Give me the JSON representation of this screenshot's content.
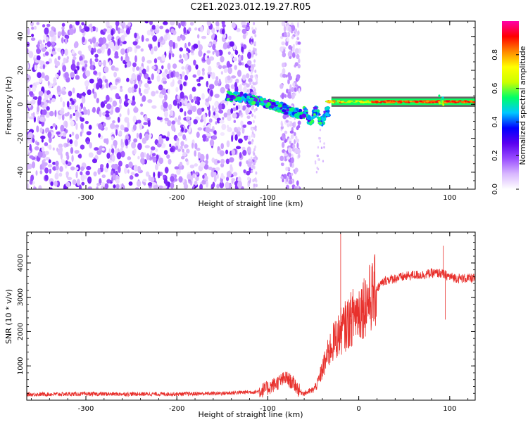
{
  "title": "C2E1.2023.012.19.27.R05",
  "colors": {
    "snr_line": "#e8312d",
    "background": "#ffffff",
    "colormap": [
      "#ffffff",
      "#d9b8ff",
      "#9a4dff",
      "#5a00f0",
      "#0000ff",
      "#00c8ff",
      "#00ff66",
      "#ccff00",
      "#ffff00",
      "#ff8800",
      "#ff0000",
      "#ff00aa"
    ]
  },
  "chart_data": [
    {
      "type": "heatmap",
      "title": "",
      "xlabel": "Height of straight line (km)",
      "ylabel": "Frequency (Hz)",
      "xlim": [
        -365,
        128
      ],
      "ylim": [
        -50,
        49
      ],
      "x_ticks": [
        -300,
        -200,
        -100,
        0,
        100
      ],
      "y_ticks": [
        -40,
        -20,
        0,
        20,
        40
      ],
      "colorbar": {
        "label": "Normalized spectral amplitude",
        "range": [
          0.0,
          1.0
        ],
        "ticks": [
          "0.0",
          "0.2",
          "0.4",
          "0.6",
          "0.8"
        ]
      },
      "regions": [
        {
          "x_range": [
            -365,
            -115
          ],
          "y_range": [
            -50,
            49
          ],
          "amplitude": "0.05-0.25 (noise)"
        },
        {
          "x_range": [
            -85,
            -65
          ],
          "y_range": [
            -50,
            49
          ],
          "amplitude": "0.05-0.2 (noise)"
        },
        {
          "x_range": [
            -145,
            -25
          ],
          "trace_y_start": 5,
          "trace_y_end": -12,
          "amplitude": "0.3-0.5"
        },
        {
          "x_range": [
            -35,
            128
          ],
          "trace_y": 1.5,
          "amplitude": "0.8-1.0"
        }
      ]
    },
    {
      "type": "line",
      "title": "",
      "xlabel": "Height of straight line (km)",
      "ylabel": "SNR (10 * v/v)",
      "xlim": [
        -365,
        128
      ],
      "ylim": [
        0,
        4900
      ],
      "x_ticks": [
        -300,
        -200,
        -100,
        0,
        100
      ],
      "y_ticks": [
        1000,
        2000,
        3000,
        4000
      ],
      "series": [
        {
          "x": [
            -365,
            -300,
            -200,
            -150,
            -110,
            -100,
            -90,
            -80,
            -70,
            -65,
            -60,
            -50,
            -45,
            -40,
            -35,
            -30,
            -25,
            -22,
            -20,
            -18,
            -15,
            -10,
            -5,
            0,
            5,
            10,
            15,
            20,
            25,
            30,
            40,
            50,
            60,
            70,
            80,
            90,
            95,
            100,
            110,
            120,
            128
          ],
          "y": [
            170,
            180,
            180,
            200,
            250,
            350,
            500,
            650,
            450,
            250,
            200,
            300,
            500,
            900,
            1250,
            1600,
            1800,
            1900,
            2000,
            2050,
            2150,
            2300,
            2500,
            2600,
            2750,
            2900,
            3050,
            3250,
            3400,
            3500,
            3550,
            3600,
            3650,
            3650,
            3700,
            3700,
            3650,
            3600,
            3550,
            3550,
            3550
          ],
          "spikes": [
            {
              "x": -20,
              "y": 4850
            },
            {
              "x": 93,
              "y": 4500
            },
            {
              "x": 95,
              "y": 2350
            }
          ]
        }
      ]
    }
  ]
}
